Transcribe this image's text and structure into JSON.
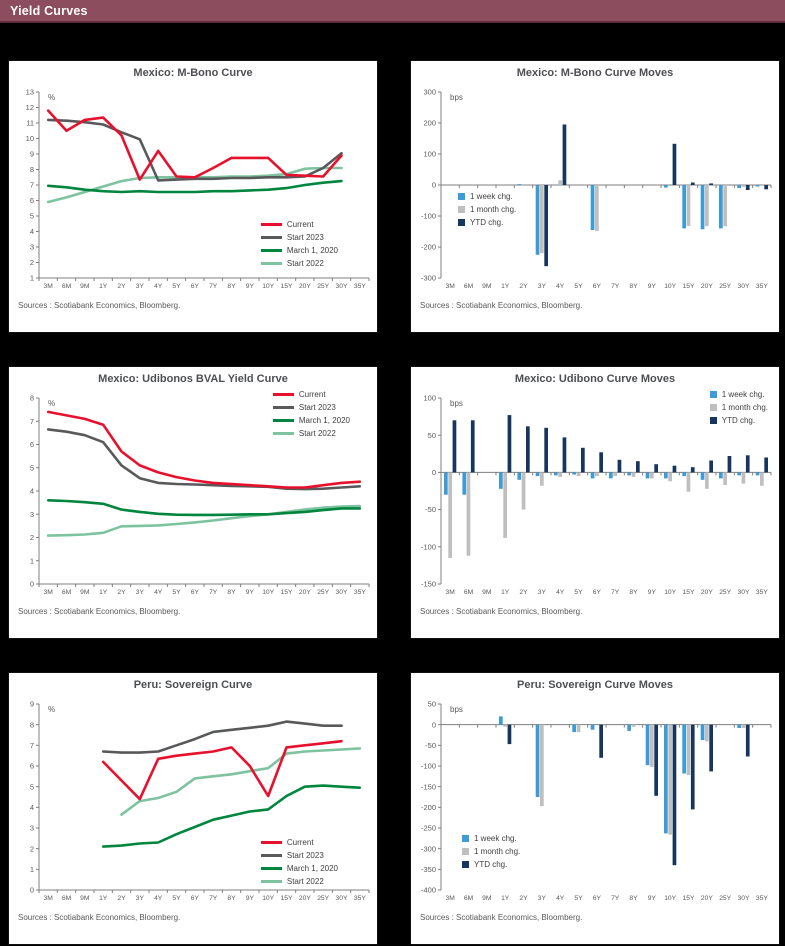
{
  "page": {
    "header_title": "Yield Curves"
  },
  "colors": {
    "header_bg": "#8c4d5e",
    "page_bg": "#000000",
    "current": "#e8112d",
    "start2023": "#58595b",
    "march2020": "#00853e",
    "start2022": "#7dc39f",
    "week": "#3d9bd5",
    "month": "#bfbfbf",
    "ytd": "#17365d",
    "axis": "#7f7f7f",
    "text": "#595959"
  },
  "sources": "Sources : Scotiabank Economics, Bloomberg.",
  "chart_data": [
    {
      "type": "line",
      "title": "Mexico: M-Bono Curve",
      "unit": "%",
      "ymin": 1,
      "ymax": 13,
      "ystep": 1,
      "legend_class": "lg-br1",
      "categories": [
        "3M",
        "6M",
        "9M",
        "1Y",
        "2Y",
        "3Y",
        "4Y",
        "5Y",
        "6Y",
        "7Y",
        "8Y",
        "9Y",
        "10Y",
        "15Y",
        "20Y",
        "25Y",
        "30Y",
        "35Y"
      ],
      "series": [
        {
          "label": "Current",
          "color": "current",
          "values": [
            11.8,
            10.5,
            11.2,
            11.35,
            10.2,
            7.35,
            9.2,
            7.55,
            7.5,
            8.1,
            8.75,
            8.75,
            8.75,
            7.65,
            7.6,
            7.55,
            8.9,
            null
          ]
        },
        {
          "label": "Start 2023",
          "color": "start2023",
          "values": [
            11.2,
            11.15,
            11.05,
            10.9,
            10.4,
            9.95,
            7.3,
            7.35,
            7.4,
            7.4,
            7.45,
            7.45,
            7.5,
            7.5,
            7.55,
            8.1,
            9.05,
            null
          ]
        },
        {
          "label": "March 1, 2020",
          "color": "march2020",
          "values": [
            6.95,
            6.85,
            6.7,
            6.6,
            6.55,
            6.6,
            6.55,
            6.55,
            6.55,
            6.6,
            6.6,
            6.65,
            6.7,
            6.8,
            7.0,
            7.15,
            7.25,
            null
          ]
        },
        {
          "label": "Start 2022",
          "color": "start2022",
          "values": [
            5.9,
            6.2,
            6.55,
            6.9,
            7.25,
            7.45,
            7.5,
            7.5,
            7.5,
            7.5,
            7.55,
            7.55,
            7.6,
            7.7,
            8.05,
            8.1,
            8.1,
            null
          ]
        }
      ]
    },
    {
      "type": "bar",
      "title": "Mexico: M-Bono Curve Moves",
      "unit": "bps",
      "ymin": -300,
      "ymax": 300,
      "ystep": 100,
      "legend_class": "lg-ml2",
      "categories": [
        "3M",
        "6M",
        "9M",
        "1Y",
        "2Y",
        "3Y",
        "4Y",
        "5Y",
        "6Y",
        "7Y",
        "8Y",
        "9Y",
        "10Y",
        "15Y",
        "20Y",
        "25Y",
        "30Y",
        "35Y"
      ],
      "series": [
        {
          "label": "1 week chg.",
          "color": "week",
          "values": [
            0,
            0,
            0,
            0,
            3,
            -225,
            0,
            0,
            -145,
            0,
            0,
            0,
            -8,
            -140,
            -143,
            -140,
            -10,
            -5
          ]
        },
        {
          "label": "1 month chg.",
          "color": "month",
          "values": [
            0,
            0,
            0,
            0,
            0,
            -220,
            15,
            0,
            -148,
            0,
            0,
            0,
            0,
            -132,
            -133,
            -133,
            -6,
            -3
          ]
        },
        {
          "label": "YTD chg.",
          "color": "ytd",
          "values": [
            0,
            0,
            0,
            0,
            0,
            -262,
            195,
            0,
            0,
            0,
            0,
            0,
            133,
            8,
            5,
            0,
            -16,
            -14
          ]
        }
      ]
    },
    {
      "type": "line",
      "title": "Mexico: Udibonos BVAL Yield Curve",
      "unit": "%",
      "ymin": 0,
      "ymax": 8,
      "ystep": 1,
      "legend_class": "lg-tr3",
      "categories": [
        "3M",
        "6M",
        "9M",
        "1Y",
        "2Y",
        "3Y",
        "4Y",
        "5Y",
        "6Y",
        "7Y",
        "8Y",
        "9Y",
        "10Y",
        "15Y",
        "20Y",
        "25Y",
        "30Y",
        "35Y"
      ],
      "series": [
        {
          "label": "Current",
          "color": "current",
          "values": [
            7.4,
            7.25,
            7.1,
            6.85,
            5.7,
            5.1,
            4.8,
            4.6,
            4.45,
            4.35,
            4.3,
            4.25,
            4.2,
            4.15,
            4.15,
            4.25,
            4.35,
            4.4
          ]
        },
        {
          "label": "Start 2023",
          "color": "start2023",
          "values": [
            6.65,
            6.55,
            6.4,
            6.1,
            5.1,
            4.55,
            4.35,
            4.3,
            4.28,
            4.25,
            4.22,
            4.2,
            4.18,
            4.1,
            4.08,
            4.1,
            4.15,
            4.2
          ]
        },
        {
          "label": "March 1, 2020",
          "color": "march2020",
          "values": [
            3.6,
            3.57,
            3.52,
            3.45,
            3.2,
            3.1,
            3.02,
            2.98,
            2.97,
            2.97,
            2.98,
            3.0,
            3.0,
            3.05,
            3.1,
            3.18,
            3.25,
            3.25
          ]
        },
        {
          "label": "Start 2022",
          "color": "start2022",
          "values": [
            2.08,
            2.1,
            2.13,
            2.2,
            2.48,
            2.5,
            2.52,
            2.58,
            2.65,
            2.73,
            2.83,
            2.92,
            3.0,
            3.1,
            3.2,
            3.28,
            3.33,
            3.35
          ]
        }
      ]
    },
    {
      "type": "bar",
      "title": "Mexico: Udibono Curve Moves",
      "unit": "bps",
      "ymin": -150,
      "ymax": 100,
      "ystep": 50,
      "legend_class": "lg-tr4",
      "categories": [
        "3M",
        "6M",
        "9M",
        "1Y",
        "2Y",
        "3Y",
        "4Y",
        "5Y",
        "6Y",
        "7Y",
        "8Y",
        "9Y",
        "10Y",
        "15Y",
        "20Y",
        "25Y",
        "30Y",
        "35Y"
      ],
      "series": [
        {
          "label": "1 week chg.",
          "color": "week",
          "values": [
            -30,
            -30,
            null,
            -22,
            -10,
            -5,
            -4,
            -3,
            -8,
            -8,
            -4,
            -8,
            -8,
            -5,
            -10,
            -8,
            -4,
            -4
          ]
        },
        {
          "label": "1 month chg.",
          "color": "month",
          "values": [
            -115,
            -112,
            null,
            -88,
            -50,
            -18,
            -6,
            -5,
            -5,
            -5,
            -6,
            -8,
            -12,
            -26,
            -22,
            -17,
            -15,
            -18
          ]
        },
        {
          "label": "YTD chg.",
          "color": "ytd",
          "values": [
            70,
            70,
            null,
            77,
            62,
            60,
            47,
            33,
            27,
            17,
            15,
            11,
            9,
            7,
            16,
            22,
            23,
            20
          ]
        }
      ]
    },
    {
      "type": "line",
      "title": "Peru: Sovereign Curve",
      "unit": "%",
      "ymin": 0,
      "ymax": 9,
      "ystep": 1,
      "legend_class": "lg-br5",
      "categories": [
        "3M",
        "6M",
        "9M",
        "1Y",
        "2Y",
        "3Y",
        "4Y",
        "5Y",
        "6Y",
        "7Y",
        "8Y",
        "9Y",
        "10Y",
        "15Y",
        "20Y",
        "25Y",
        "30Y",
        "35Y"
      ],
      "series": [
        {
          "label": "Current",
          "color": "current",
          "values": [
            null,
            null,
            null,
            6.2,
            5.3,
            4.4,
            6.35,
            6.5,
            6.6,
            6.7,
            6.9,
            6.0,
            4.55,
            6.9,
            7.0,
            7.1,
            7.2,
            null
          ]
        },
        {
          "label": "Start 2023",
          "color": "start2023",
          "values": [
            null,
            null,
            null,
            6.7,
            6.65,
            6.65,
            6.7,
            7.0,
            7.3,
            7.65,
            7.75,
            7.85,
            7.95,
            8.15,
            8.05,
            7.95,
            7.95,
            null
          ]
        },
        {
          "label": "March 1, 2020",
          "color": "march2020",
          "values": [
            null,
            null,
            null,
            2.1,
            2.15,
            2.25,
            2.3,
            2.7,
            3.05,
            3.4,
            3.6,
            3.8,
            3.9,
            4.55,
            5.0,
            5.05,
            5.0,
            4.95
          ]
        },
        {
          "label": "Start 2022",
          "color": "start2022",
          "values": [
            null,
            null,
            null,
            null,
            3.65,
            4.3,
            4.45,
            4.75,
            5.4,
            5.5,
            5.6,
            5.75,
            5.9,
            6.6,
            6.7,
            6.75,
            6.8,
            6.85
          ]
        }
      ]
    },
    {
      "type": "bar",
      "title": "Peru: Sovereign Curve Moves",
      "unit": "bps",
      "ymin": -400,
      "ymax": 50,
      "ystep": 50,
      "legend_class": "lg-ml6",
      "categories": [
        "3M",
        "6M",
        "9M",
        "1Y",
        "2Y",
        "3Y",
        "4Y",
        "5Y",
        "6Y",
        "7Y",
        "8Y",
        "9Y",
        "10Y",
        "15Y",
        "20Y",
        "25Y",
        "30Y",
        "35Y"
      ],
      "series": [
        {
          "label": "1 week chg.",
          "color": "week",
          "values": [
            null,
            null,
            null,
            20,
            0,
            -175,
            0,
            -18,
            -12,
            0,
            -15,
            -98,
            -263,
            -118,
            -37,
            0,
            -8,
            0
          ]
        },
        {
          "label": "1 month chg.",
          "color": "month",
          "values": [
            null,
            null,
            null,
            -5,
            0,
            -197,
            0,
            -18,
            0,
            0,
            -5,
            -102,
            -266,
            -122,
            -40,
            0,
            -8,
            0
          ]
        },
        {
          "label": "YTD chg.",
          "color": "ytd",
          "values": [
            null,
            null,
            null,
            -47,
            0,
            0,
            0,
            0,
            -80,
            0,
            0,
            -172,
            -340,
            -205,
            -113,
            0,
            -77,
            0
          ]
        }
      ]
    }
  ]
}
